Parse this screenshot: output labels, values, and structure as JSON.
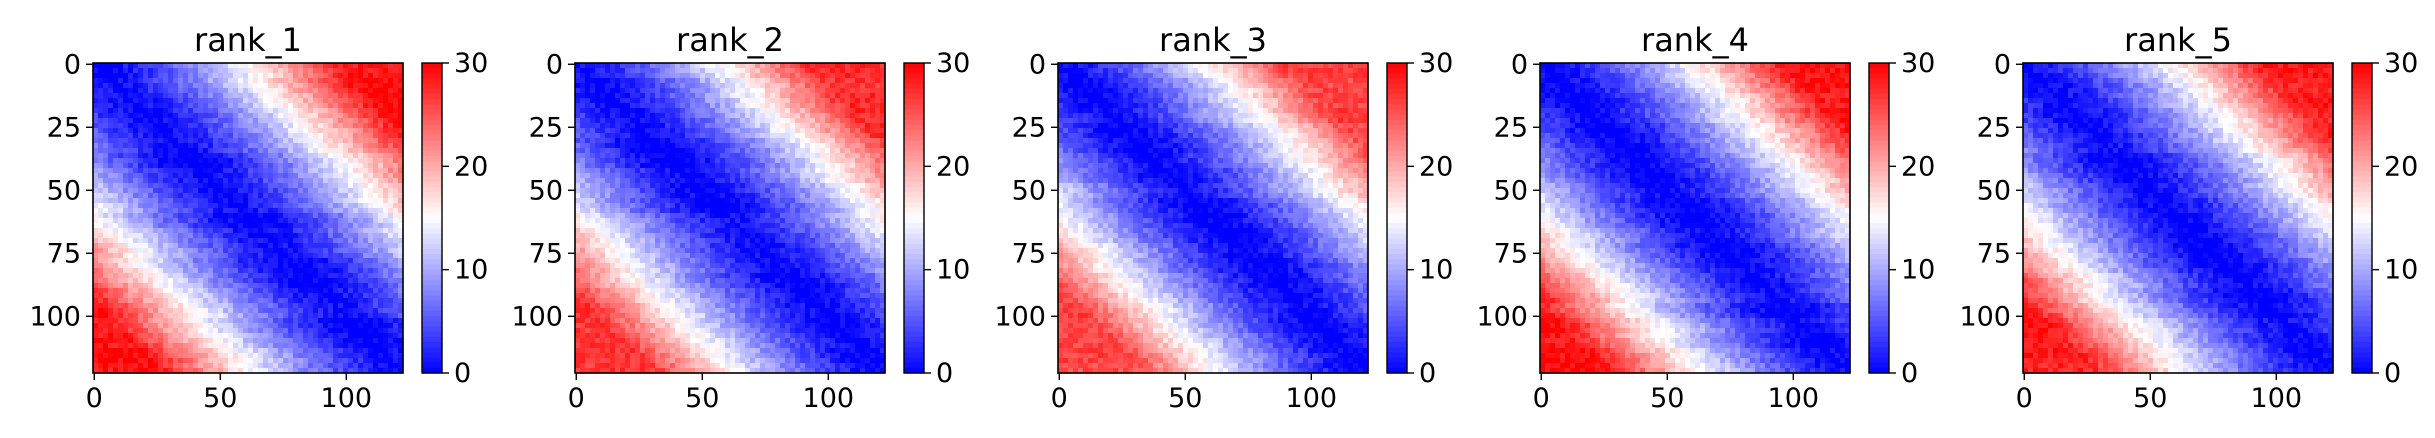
{
  "chart_data": {
    "type": "heatmap",
    "colormap": {
      "name": "bwr",
      "low": "#0000ff",
      "mid": "#ffffff",
      "high": "#ff0000"
    },
    "value_range": [
      0,
      30
    ],
    "matrix_size": 123,
    "panels": [
      {
        "title": "rank_1",
        "far_value": 29,
        "corner_extent": 0.78
      },
      {
        "title": "rank_2",
        "far_value": 27,
        "corner_extent": 0.74
      },
      {
        "title": "rank_3",
        "far_value": 26,
        "corner_extent": 0.72
      },
      {
        "title": "rank_4",
        "far_value": 29,
        "corner_extent": 0.78
      },
      {
        "title": "rank_5",
        "far_value": 28,
        "corner_extent": 0.76
      }
    ],
    "x_ticks": [
      0,
      50,
      100
    ],
    "x_tick_labels": [
      "0",
      "50",
      "100"
    ],
    "y_ticks": [
      0,
      25,
      50,
      75,
      100
    ],
    "y_tick_labels": [
      "0",
      "25",
      "50",
      "75",
      "100"
    ],
    "colorbar_ticks": [
      0,
      10,
      20,
      30
    ],
    "colorbar_tick_labels": [
      "0",
      "10",
      "20",
      "30"
    ]
  }
}
